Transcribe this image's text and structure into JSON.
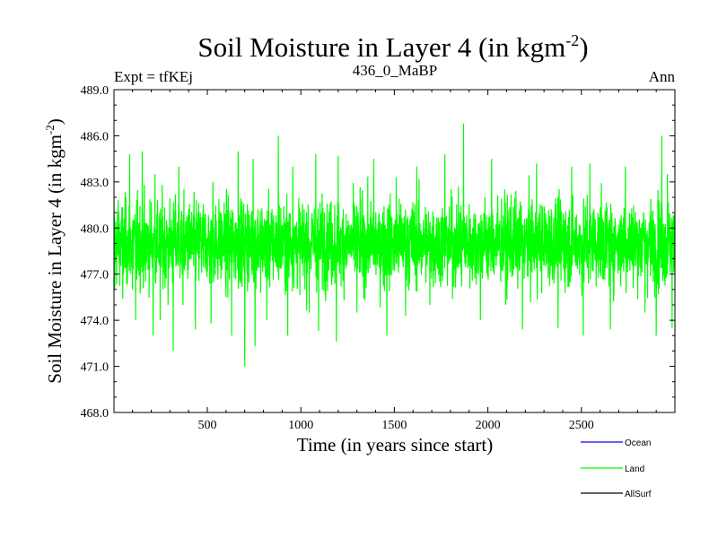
{
  "chart_data": {
    "type": "line",
    "title": "Soil Moisture in Layer 4 (in kgm",
    "title_sup": "-2",
    "title_close": ")",
    "subtitle_left": "Expt = tfKEj",
    "subtitle_center": "436_0_MaBP",
    "subtitle_right": "Ann",
    "xlabel": "Time (in years since start)",
    "ylabel": "Soil Moisture in Layer 4 (in kgm",
    "ylabel_sup": "-2",
    "ylabel_close": ")",
    "xlim": [
      1,
      3000
    ],
    "ylim": [
      468.0,
      489.0
    ],
    "x_ticks": [
      500,
      1000,
      1500,
      2000,
      2500
    ],
    "x_tick_labels": [
      "500",
      "1000",
      "1500",
      "2000",
      "2500"
    ],
    "y_ticks": [
      468.0,
      471.0,
      474.0,
      477.0,
      480.0,
      483.0,
      486.0,
      489.0
    ],
    "y_tick_labels": [
      "468.0",
      "471.0",
      "474.0",
      "477.0",
      "480.0",
      "483.0",
      "486.0",
      "489.0"
    ],
    "grid": false,
    "legend_position": "bottom-right",
    "series": [
      {
        "name": "Ocean",
        "color": "#0000ff",
        "values": []
      },
      {
        "name": "Land",
        "color": "#00ff00",
        "mean": 479.0,
        "x": [
          1,
          2,
          5,
          10,
          23,
          48,
          60,
          75,
          85,
          100,
          117,
          152,
          170,
          210,
          220,
          248,
          258,
          290,
          318,
          348,
          370,
          436,
          462,
          520,
          530,
          600,
          630,
          665,
          700,
          745,
          755,
          818,
          880,
          930,
          957,
          1045,
          1080,
          1095,
          1190,
          1200,
          1300,
          1390,
          1460,
          1510,
          1560,
          1620,
          1690,
          1770,
          1860,
          1870,
          1960,
          2020,
          2095,
          2185,
          2260,
          2375,
          2448,
          2510,
          2545,
          2655,
          2735,
          2840,
          2900,
          2930,
          2960,
          2985,
          3000
        ],
        "values": [
          482.0,
          478.5,
          476.0,
          479.0,
          481.8,
          475.4,
          482.0,
          477.5,
          484.8,
          476.0,
          474.0,
          485.0,
          476.5,
          473.0,
          483.5,
          474.0,
          481.0,
          475.0,
          472.0,
          484.0,
          475.0,
          473.4,
          481.0,
          473.8,
          483.0,
          475.5,
          473.0,
          485.0,
          470.8,
          484.5,
          472.3,
          474.0,
          486.0,
          473.0,
          484.0,
          474.5,
          484.8,
          473.3,
          472.6,
          484.7,
          474.5,
          484.5,
          473.0,
          483.3,
          474.3,
          484.0,
          475.0,
          484.8,
          476.2,
          487.2,
          474.0,
          484.5,
          475.0,
          473.4,
          484.2,
          473.5,
          484.0,
          473.0,
          484.2,
          473.4,
          484.0,
          474.5,
          473.0,
          486.0,
          483.5,
          473.5,
          478.0
        ]
      },
      {
        "name": "AllSurf",
        "color": "#000000",
        "values": []
      }
    ]
  }
}
